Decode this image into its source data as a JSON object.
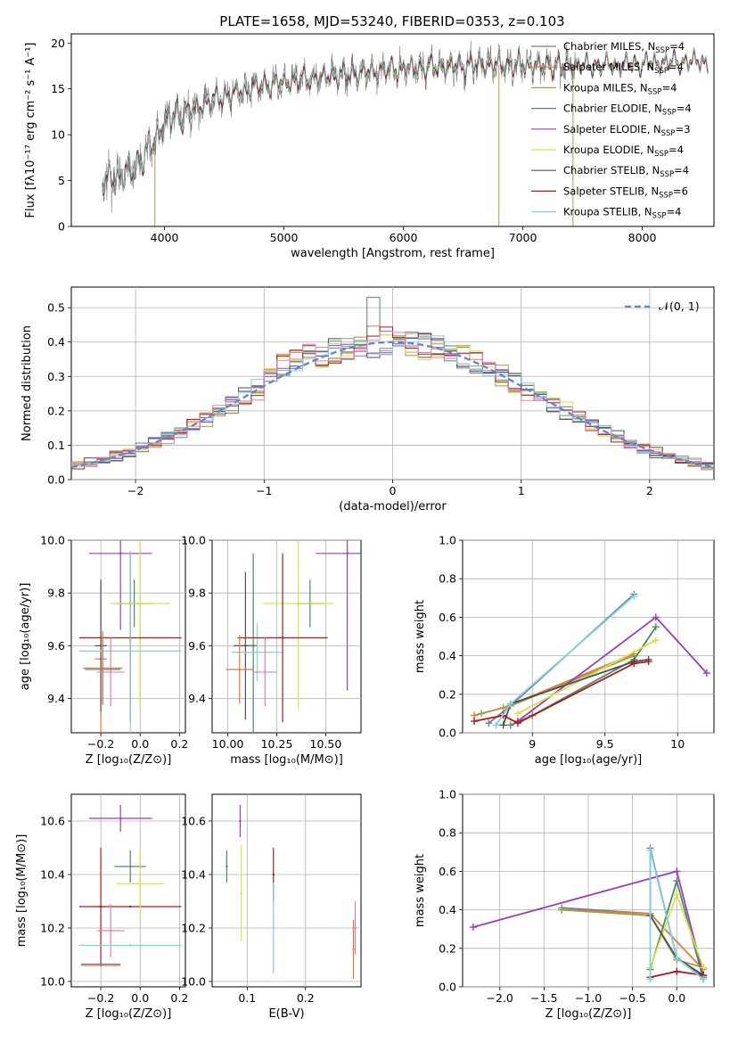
{
  "figure": {
    "title": "PLATE=1658, MJD=53240, FIBERID=0353, z=0.103"
  },
  "colors": {
    "Chabrier MILES": "#6f7ea0",
    "Salpeter MILES": "#e07a39",
    "Kroupa MILES": "#a59b4a",
    "Chabrier ELODIE": "#4d8a62",
    "Salpeter ELODIE": "#9a3cc0",
    "Kroupa ELODIE": "#d3e34a",
    "Chabrier STELIB": "#505050",
    "Salpeter STELIB": "#b01a1a",
    "Kroupa STELIB": "#7fd3dc",
    "pink": "#e67fb5",
    "normal_curve": "#5b8ad6",
    "spectrum_data": "#7a7a7a"
  },
  "chart_data": [
    {
      "id": "spectrum",
      "type": "line",
      "xlabel": "wavelength [Angstrom, rest frame]",
      "ylabel": "Flux [fλ10⁻¹⁷ erg cm⁻² s⁻¹ A⁻¹]",
      "xlim": [
        3220,
        8600
      ],
      "ylim": [
        0,
        21
      ],
      "xticks": [
        4000,
        5000,
        6000,
        7000,
        8000
      ],
      "yticks": [
        0,
        5,
        10,
        15,
        20
      ],
      "legend_location": "right",
      "legend": [
        {
          "label": "Chabrier MILES, N",
          "sub": "SSP",
          "suffix": "=4",
          "color": "Chabrier MILES"
        },
        {
          "label": "Salpeter MILES, N",
          "sub": "SSP",
          "suffix": "=4",
          "color": "Salpeter MILES"
        },
        {
          "label": "Kroupa MILES, N",
          "sub": "SSP",
          "suffix": "=4",
          "color": "Kroupa MILES"
        },
        {
          "label": "Chabrier ELODIE, N",
          "sub": "SSP",
          "suffix": "=4",
          "color": "Chabrier ELODIE"
        },
        {
          "label": "Salpeter ELODIE, N",
          "sub": "SSP",
          "suffix": "=3",
          "color": "Salpeter ELODIE"
        },
        {
          "label": "Kroupa ELODIE, N",
          "sub": "SSP",
          "suffix": "=4",
          "color": "Kroupa ELODIE"
        },
        {
          "label": "Chabrier STELIB, N",
          "sub": "SSP",
          "suffix": "=4",
          "color": "Chabrier STELIB"
        },
        {
          "label": "Salpeter STELIB, N",
          "sub": "SSP",
          "suffix": "=6",
          "color": "Salpeter STELIB"
        },
        {
          "label": "Kroupa STELIB, N",
          "sub": "SSP",
          "suffix": "=4",
          "color": "Kroupa STELIB"
        }
      ],
      "continuum": [
        [
          3480,
          4.9
        ],
        [
          3700,
          5.8
        ],
        [
          3900,
          8.8
        ],
        [
          4000,
          11.5
        ],
        [
          4200,
          12.5
        ],
        [
          4400,
          13.8
        ],
        [
          4600,
          14.6
        ],
        [
          4800,
          15.3
        ],
        [
          5000,
          15.7
        ],
        [
          5200,
          16.1
        ],
        [
          5500,
          16.5
        ],
        [
          5800,
          17.0
        ],
        [
          6000,
          17.2
        ],
        [
          6300,
          17.4
        ],
        [
          6600,
          17.6
        ],
        [
          7000,
          17.6
        ],
        [
          7400,
          17.5
        ],
        [
          7800,
          17.6
        ],
        [
          8200,
          17.9
        ],
        [
          8550,
          18.0
        ]
      ],
      "data_xmax": 7450,
      "model_xmax": 8550,
      "spikes": [
        [
          3920,
          0
        ],
        [
          6800,
          0
        ],
        [
          7420,
          0
        ]
      ]
    },
    {
      "id": "residuals",
      "type": "histogram",
      "xlabel": "(data-model)/error",
      "ylabel": "Normed distribution",
      "xlim": [
        -2.5,
        2.5
      ],
      "ylim": [
        0,
        0.56
      ],
      "xticks": [
        -2,
        -1,
        0,
        1,
        2
      ],
      "yticks": [
        0.0,
        0.1,
        0.2,
        0.3,
        0.4,
        0.5
      ],
      "bin_width": 0.1,
      "legend": [
        {
          "label": "𝒩(0, 1)",
          "color": "normal_curve",
          "style": "dashed"
        }
      ],
      "grid": true
    },
    {
      "id": "age-vs-z",
      "type": "errorbar",
      "xlabel": "Z [log₁₀(Z/Z⊙)]",
      "ylabel": "age  [log₁₀(age/yr)]",
      "xlim": [
        -0.35,
        0.23
      ],
      "ylim": [
        9.27,
        10.0
      ],
      "xticks": [
        -0.2,
        0.0,
        0.2
      ],
      "xticklabels": [
        "−0.2",
        "0.0",
        "0.2"
      ],
      "yticks": [
        9.4,
        9.6,
        9.8,
        10.0
      ],
      "points": [
        {
          "x": -0.2,
          "xerr": 0.03,
          "y": 9.55,
          "yerr": 0.3,
          "c": "Salpeter MILES"
        },
        {
          "x": -0.2,
          "xerr": 0.03,
          "y": 9.6,
          "yerr": 0.25,
          "c": "Chabrier STELIB"
        },
        {
          "x": -0.03,
          "xerr": 0.09,
          "y": 9.76,
          "yerr": 0.09,
          "c": "Chabrier ELODIE"
        },
        {
          "x": -0.1,
          "xerr": 0.16,
          "y": 9.95,
          "yerr": 0.29,
          "c": "Salpeter ELODIE"
        },
        {
          "x": 0.0,
          "xerr": 0.15,
          "y": 9.76,
          "yerr": 0.4,
          "c": "Kroupa ELODIE"
        },
        {
          "x": -0.05,
          "xerr": 0.26,
          "y": 9.63,
          "yerr": 0.32,
          "c": "Salpeter STELIB"
        },
        {
          "x": -0.05,
          "xerr": 0.26,
          "y": 9.58,
          "yerr": 0.38,
          "c": "Kroupa STELIB"
        },
        {
          "x": -0.15,
          "xerr": 0.07,
          "y": 9.5,
          "yerr": 0.13,
          "c": "pink"
        },
        {
          "x": -0.19,
          "xerr": 0.09,
          "y": 9.51,
          "yerr": 0.13,
          "c": "Chabrier MILES"
        },
        {
          "x": -0.19,
          "xerr": 0.1,
          "y": 9.515,
          "yerr": 0.14,
          "c": "Salpeter MILES"
        }
      ]
    },
    {
      "id": "age-vs-mass",
      "type": "errorbar",
      "xlabel": "mass [log₁₀(M/M⊙)]",
      "xlim": [
        9.92,
        10.68
      ],
      "ylim": [
        9.27,
        10.0
      ],
      "xticks": [
        10.0,
        10.25,
        10.5
      ],
      "xticklabels": [
        "10.00",
        "10.25",
        "10.50"
      ],
      "yticks": [
        9.4,
        9.6,
        9.8,
        10.0
      ],
      "points": [
        {
          "x": 10.09,
          "xerr": 0.06,
          "y": 9.6,
          "yerr": 0.28,
          "c": "Chabrier STELIB"
        },
        {
          "x": 10.13,
          "xerr": 0.02,
          "y": 9.6,
          "yerr": 0.35,
          "c": "Chabrier ELODIE"
        },
        {
          "x": 10.15,
          "xerr": 0.13,
          "y": 9.575,
          "yerr": 0.11,
          "c": "Kroupa STELIB"
        },
        {
          "x": 10.42,
          "xerr": 0.07,
          "y": 9.76,
          "yerr": 0.09,
          "c": "Chabrier ELODIE"
        },
        {
          "x": 10.61,
          "xerr": 0.16,
          "y": 9.95,
          "yerr": 0.52,
          "c": "Salpeter ELODIE"
        },
        {
          "x": 10.36,
          "xerr": 0.18,
          "y": 9.76,
          "yerr": 0.4,
          "c": "Kroupa ELODIE"
        },
        {
          "x": 10.28,
          "xerr": 0.23,
          "y": 9.63,
          "yerr": 0.32,
          "c": "Salpeter STELIB"
        },
        {
          "x": 10.19,
          "xerr": 0.06,
          "y": 9.5,
          "yerr": 0.13,
          "c": "pink"
        },
        {
          "x": 10.06,
          "xerr": 0.07,
          "y": 9.51,
          "yerr": 0.13,
          "c": "Salpeter MILES"
        }
      ]
    },
    {
      "id": "weight-vs-age",
      "type": "line",
      "xlabel": "age  [log₁₀(age/yr)]",
      "ylabel": "mass weight",
      "xlim": [
        8.52,
        10.25
      ],
      "ylim": [
        0,
        1.0
      ],
      "xticks": [
        9.0,
        9.5,
        10.0
      ],
      "yticks": [
        0.0,
        0.2,
        0.4,
        0.6,
        0.8,
        1.0
      ],
      "series": [
        {
          "c": "Chabrier MILES",
          "x": [
            8.7,
            8.85,
            9.7
          ],
          "y": [
            0.05,
            0.14,
            0.72
          ]
        },
        {
          "c": "Salpeter MILES",
          "x": [
            8.6,
            8.8,
            9.7
          ],
          "y": [
            0.09,
            0.13,
            0.41
          ]
        },
        {
          "c": "Kroupa MILES",
          "x": [
            8.65,
            8.85,
            9.7
          ],
          "y": [
            0.1,
            0.14,
            0.4
          ]
        },
        {
          "c": "Chabrier ELODIE",
          "x": [
            8.85,
            9.0,
            9.7,
            9.85
          ],
          "y": [
            0.04,
            0.09,
            0.38,
            0.55
          ]
        },
        {
          "c": "Salpeter ELODIE",
          "x": [
            8.9,
            9.85,
            10.2
          ],
          "y": [
            0.06,
            0.6,
            0.31
          ]
        },
        {
          "c": "Kroupa ELODIE",
          "x": [
            8.9,
            9.85
          ],
          "y": [
            0.1,
            0.48
          ]
        },
        {
          "c": "Chabrier STELIB",
          "x": [
            8.8,
            8.85,
            9.7,
            9.8
          ],
          "y": [
            0.04,
            0.15,
            0.37,
            0.38
          ]
        },
        {
          "c": "Salpeter STELIB",
          "x": [
            8.6,
            8.8,
            8.9,
            9.7,
            9.8
          ],
          "y": [
            0.06,
            0.09,
            0.05,
            0.36,
            0.37
          ]
        },
        {
          "c": "Kroupa STELIB",
          "x": [
            8.75,
            8.85,
            9.7
          ],
          "y": [
            0.04,
            0.15,
            0.71
          ]
        }
      ]
    },
    {
      "id": "mass-vs-z",
      "type": "errorbar",
      "xlabel": "Z [log₁₀(Z/Z⊙)]",
      "ylabel": "mass [log₁₀(M/M⊙)]",
      "xlim": [
        -0.35,
        0.23
      ],
      "ylim": [
        9.98,
        10.7
      ],
      "xticks": [
        -0.2,
        0.0,
        0.2
      ],
      "xticklabels": [
        "−0.2",
        "0.0",
        "0.2"
      ],
      "yticks": [
        10.0,
        10.2,
        10.4,
        10.6
      ],
      "points": [
        {
          "x": -0.2,
          "xerr": 0.02,
          "y": 10.28,
          "yerr": 0.22,
          "c": "Salpeter STELIB"
        },
        {
          "x": -0.05,
          "xerr": 0.26,
          "y": 10.28,
          "yerr": 0.0,
          "c": "Salpeter STELIB"
        },
        {
          "x": -0.1,
          "xerr": 0.16,
          "y": 10.61,
          "yerr": 0.05,
          "c": "Salpeter ELODIE"
        },
        {
          "x": -0.05,
          "xerr": 0.08,
          "y": 10.43,
          "yerr": 0.06,
          "c": "Chabrier ELODIE"
        },
        {
          "x": 0.0,
          "xerr": 0.12,
          "y": 10.365,
          "yerr": 0.13,
          "c": "Kroupa ELODIE"
        },
        {
          "x": -0.15,
          "xerr": 0.07,
          "y": 10.19,
          "yerr": 0.1,
          "c": "pink"
        },
        {
          "x": -0.05,
          "xerr": 0.26,
          "y": 10.135,
          "yerr": 0.0,
          "c": "Kroupa STELIB"
        },
        {
          "x": -0.2,
          "xerr": 0.1,
          "y": 10.06,
          "yerr": 0.0,
          "c": "Salpeter MILES"
        },
        {
          "x": -0.2,
          "xerr": 0.1,
          "y": 10.065,
          "yerr": 0.0,
          "c": "Chabrier MILES"
        }
      ]
    },
    {
      "id": "mass-vs-ebv",
      "type": "errorbar",
      "xlabel": "E(B-V)",
      "xlim": [
        0.04,
        0.295
      ],
      "ylim": [
        9.98,
        10.7
      ],
      "xticks": [
        0.1,
        0.2
      ],
      "xticklabels": [
        "0.1",
        "0.2"
      ],
      "yticks": [
        10.0,
        10.2,
        10.4,
        10.6
      ],
      "points": [
        {
          "x": 0.065,
          "xerr": 0,
          "y": 10.43,
          "yerr": 0.06,
          "c": "Chabrier ELODIE"
        },
        {
          "x": 0.088,
          "xerr": 0,
          "y": 10.6,
          "yerr": 0.06,
          "c": "Salpeter ELODIE"
        },
        {
          "x": 0.09,
          "xerr": 0,
          "y": 10.33,
          "yerr": 0.18,
          "c": "Kroupa ELODIE"
        },
        {
          "x": 0.145,
          "xerr": 0,
          "y": 10.4,
          "yerr": 0.1,
          "c": "Salpeter STELIB"
        },
        {
          "x": 0.145,
          "xerr": 0,
          "y": 10.2,
          "yerr": 0.17,
          "c": "Kroupa STELIB"
        },
        {
          "x": 0.285,
          "xerr": 0,
          "y": 10.2,
          "yerr": 0.1,
          "c": "pink"
        },
        {
          "x": 0.282,
          "xerr": 0,
          "y": 10.12,
          "yerr": 0.11,
          "c": "Salpeter MILES"
        }
      ]
    },
    {
      "id": "weight-vs-z",
      "type": "line",
      "xlabel": "Z [log₁₀(Z/Z⊙)]",
      "ylabel": "mass weight",
      "xlim": [
        -2.42,
        0.42
      ],
      "ylim": [
        0,
        1.0
      ],
      "xticks": [
        -2.0,
        -1.5,
        -1.0,
        -0.5,
        0.0
      ],
      "xticklabels": [
        "−2.0",
        "−1.5",
        "−1.0",
        "−0.5",
        "0.0"
      ],
      "yticks": [
        0.0,
        0.2,
        0.4,
        0.6,
        0.8,
        1.0
      ],
      "series": [
        {
          "c": "Chabrier MILES",
          "x": [
            -1.3,
            -0.3,
            -0.3,
            0.0,
            0.3
          ],
          "y": [
            0.41,
            0.38,
            0.72,
            0.15,
            0.05
          ]
        },
        {
          "c": "Salpeter MILES",
          "x": [
            -1.3,
            -0.3,
            0.3
          ],
          "y": [
            0.4,
            0.38,
            0.09
          ]
        },
        {
          "c": "Kroupa MILES",
          "x": [
            -1.3,
            -0.3,
            0.0,
            0.3
          ],
          "y": [
            0.4,
            0.37,
            0.14,
            0.1
          ]
        },
        {
          "c": "Chabrier ELODIE",
          "x": [
            -0.3,
            0.0,
            0.3
          ],
          "y": [
            0.09,
            0.55,
            0.04
          ]
        },
        {
          "c": "Salpeter ELODIE",
          "x": [
            -2.3,
            0.0,
            0.3
          ],
          "y": [
            0.31,
            0.6,
            0.06
          ]
        },
        {
          "c": "Kroupa ELODIE",
          "x": [
            -0.3,
            0.0,
            0.3
          ],
          "y": [
            0.1,
            0.48,
            0.1
          ]
        },
        {
          "c": "Chabrier STELIB",
          "x": [
            -0.3,
            0.0,
            0.3
          ],
          "y": [
            0.37,
            0.15,
            0.06
          ]
        },
        {
          "c": "Salpeter STELIB",
          "x": [
            -0.3,
            0.0,
            0.3
          ],
          "y": [
            0.05,
            0.08,
            0.06
          ]
        },
        {
          "c": "Kroupa STELIB",
          "x": [
            -0.3,
            -0.3,
            0.0,
            0.3
          ],
          "y": [
            0.04,
            0.71,
            0.15,
            0.04
          ]
        }
      ]
    }
  ]
}
